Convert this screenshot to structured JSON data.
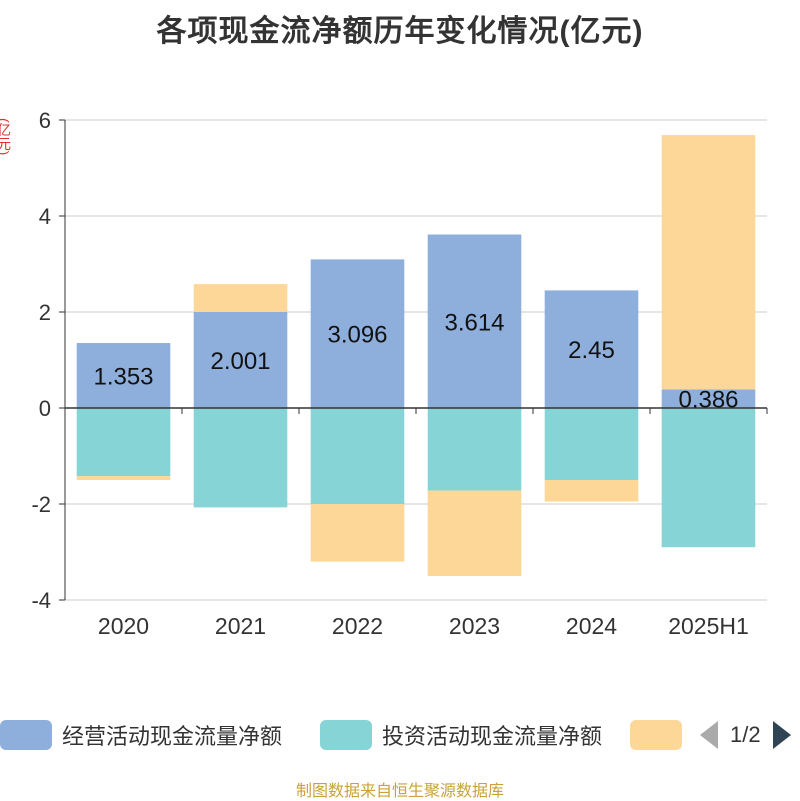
{
  "chart_data": {
    "type": "bar",
    "stacked": true,
    "title": "各项现金流净额历年变化情况(亿元)",
    "ylabel": "(亿元)",
    "categories": [
      "2020",
      "2021",
      "2022",
      "2023",
      "2024",
      "2025H1"
    ],
    "ylim": [
      -4,
      6
    ],
    "yticks": [
      -4,
      -2,
      0,
      2,
      4,
      6
    ],
    "grid": true,
    "legend_position": "bottom",
    "series": [
      {
        "name": "经营活动现金流量净额",
        "color": "#8eaedb",
        "values": [
          1.353,
          2.001,
          3.096,
          3.614,
          2.45,
          0.386
        ],
        "labels": [
          "1.353",
          "2.001",
          "3.096",
          "3.614",
          "2.45",
          "0.386"
        ]
      },
      {
        "name": "投资活动现金流量净额",
        "color": "#86d4d6",
        "values": [
          -1.42,
          -2.07,
          -2.0,
          -1.72,
          -1.5,
          -2.9
        ]
      },
      {
        "name": "",
        "color": "#fdd798",
        "values": [
          -0.08,
          0.58,
          -1.2,
          -1.78,
          -0.45,
          5.3
        ]
      }
    ]
  },
  "legend": {
    "pager": "1/2"
  },
  "footer": "制图数据来自恒生聚源数据库"
}
